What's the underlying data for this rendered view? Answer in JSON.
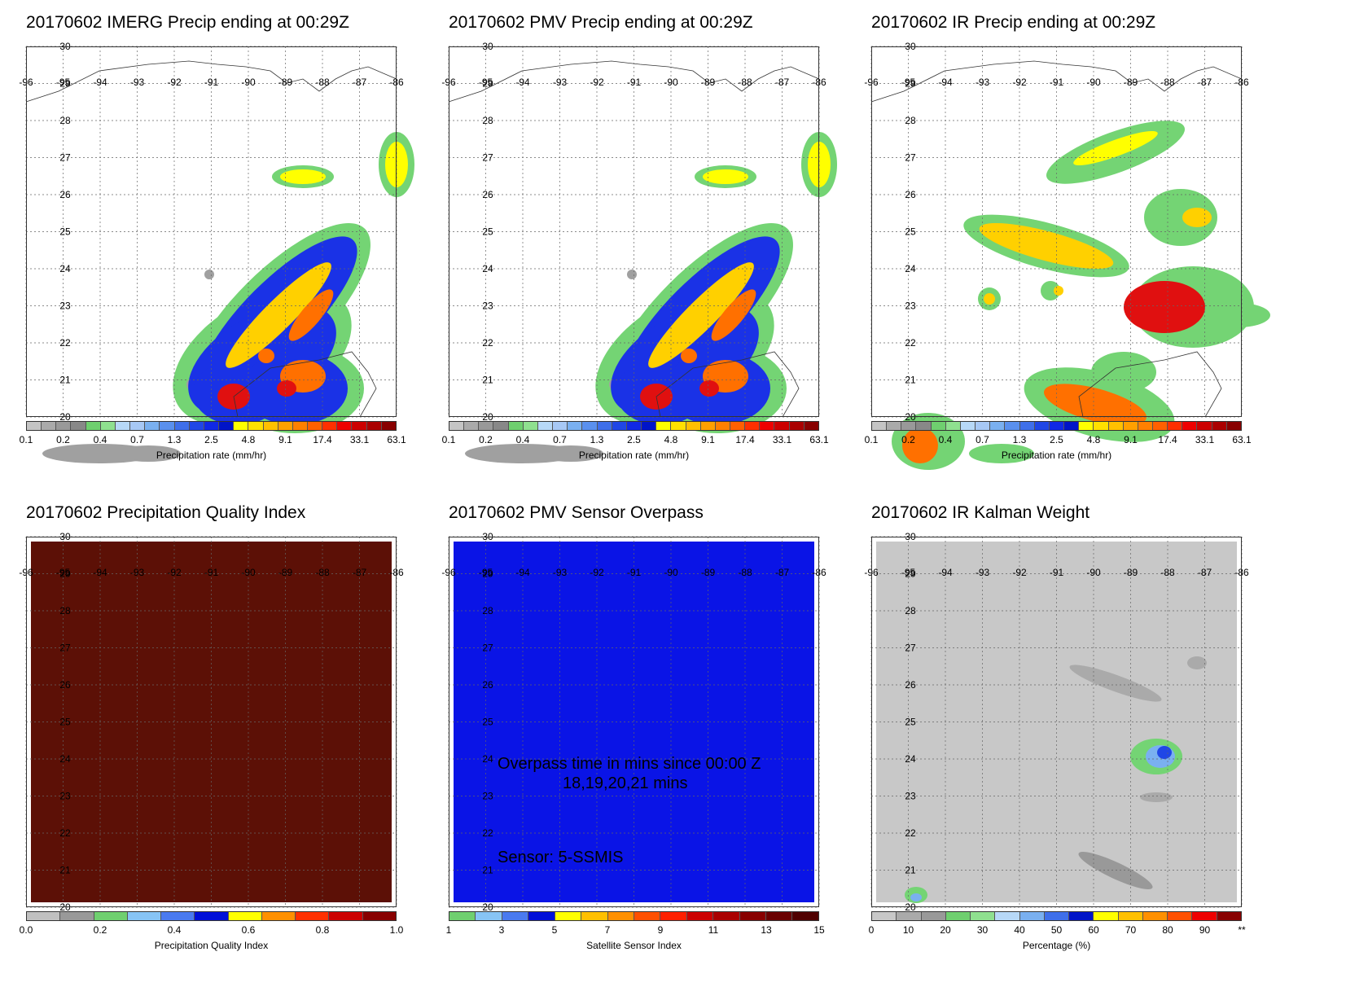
{
  "lon_labels": [
    "-96",
    "-95",
    "-94",
    "-93",
    "-92",
    "-91",
    "-90",
    "-89",
    "-88",
    "-87",
    "-86"
  ],
  "lat_labels": [
    "30",
    "29",
    "28",
    "27",
    "26",
    "25",
    "24",
    "23",
    "22",
    "21",
    "20"
  ],
  "panels": [
    {
      "title": "20170602 IMERG Precip ending at 00:29Z",
      "field": "precip",
      "colorbar": {
        "label": "Precipitation rate (mm/hr)",
        "ticks": [
          "0.1",
          "0.2",
          "0.4",
          "0.7",
          "1.3",
          "2.5",
          "4.8",
          "9.1",
          "17.4",
          "33.1",
          "63.1"
        ]
      }
    },
    {
      "title": "20170602 PMV Precip ending at 00:29Z",
      "field": "precip",
      "colorbar": {
        "label": "Precipitation rate (mm/hr)",
        "ticks": [
          "0.1",
          "0.2",
          "0.4",
          "0.7",
          "1.3",
          "2.5",
          "4.8",
          "9.1",
          "17.4",
          "33.1",
          "63.1"
        ]
      }
    },
    {
      "title": "20170602 IR Precip ending at 00:29Z",
      "field": "ir_precip",
      "colorbar": {
        "label": "Precipitation rate (mm/hr)",
        "ticks": [
          "0.1",
          "0.2",
          "0.4",
          "0.7",
          "1.3",
          "2.5",
          "4.8",
          "9.1",
          "17.4",
          "33.1",
          "63.1"
        ]
      }
    },
    {
      "title": "20170602 Precipitation Quality Index",
      "field": "uniform",
      "fill_color": "#5c1006",
      "colorbar": {
        "label": "Precipitation Quality Index",
        "ticks": [
          "0.0",
          "0.2",
          "0.4",
          "0.6",
          "0.8",
          "1.0"
        ]
      }
    },
    {
      "title": "20170602 PMV Sensor Overpass",
      "field": "uniform",
      "fill_color": "#0a14e6",
      "overlay": {
        "line1": "Overpass time in mins since 00:00 Z",
        "line2": "18,19,20,21 mins",
        "sensor": "Sensor:   5-SSMIS"
      },
      "colorbar": {
        "label": "Satellite Sensor Index",
        "ticks": [
          "1",
          "3",
          "5",
          "7",
          "9",
          "11",
          "13",
          "15"
        ]
      }
    },
    {
      "title": "20170602 IR Kalman Weight",
      "field": "kalman",
      "fill_color": "#c8c8c8",
      "colorbar": {
        "label": "Percentage (%)",
        "ticks": [
          "0",
          "10",
          "20",
          "30",
          "40",
          "50",
          "60",
          "70",
          "80",
          "90",
          "**"
        ]
      }
    }
  ],
  "colors": {
    "precip_scale": [
      "#c4c4c4",
      "#aaaaaa",
      "#999999",
      "#888888",
      "#6fcf6f",
      "#8fe08f",
      "#b7d8f7",
      "#a7c8f5",
      "#7ab0f0",
      "#5a90ee",
      "#3f6fea",
      "#2046e6",
      "#1028e6",
      "#0014c8",
      "#ffff00",
      "#ffe000",
      "#ffc000",
      "#ffa000",
      "#ff8000",
      "#ff6000",
      "#ff3000",
      "#ee0000",
      "#cc0000",
      "#aa0000",
      "#880000"
    ],
    "quality_scale": [
      "#c0c0c0",
      "#999999",
      "#6fcf6f",
      "#87c4f5",
      "#4a7af0",
      "#0010d8",
      "#ffff00",
      "#ff9000",
      "#ff3000",
      "#cc0000",
      "#880000"
    ],
    "sensor_scale": [
      "#6fcf6f",
      "#87c4f5",
      "#4a7af0",
      "#0010d8",
      "#ffff00",
      "#ffc000",
      "#ff9000",
      "#ff5000",
      "#ff2000",
      "#cc0000",
      "#aa0000",
      "#880000",
      "#6a0000",
      "#500000"
    ],
    "percent_scale": [
      "#c8c8c8",
      "#aaaaaa",
      "#999999",
      "#6fcf6f",
      "#8fe08f",
      "#b7d8f7",
      "#7ab0f0",
      "#3f6fea",
      "#0014c8",
      "#ffff00",
      "#ffc000",
      "#ff9000",
      "#ff5000",
      "#ee0000",
      "#880000"
    ]
  }
}
